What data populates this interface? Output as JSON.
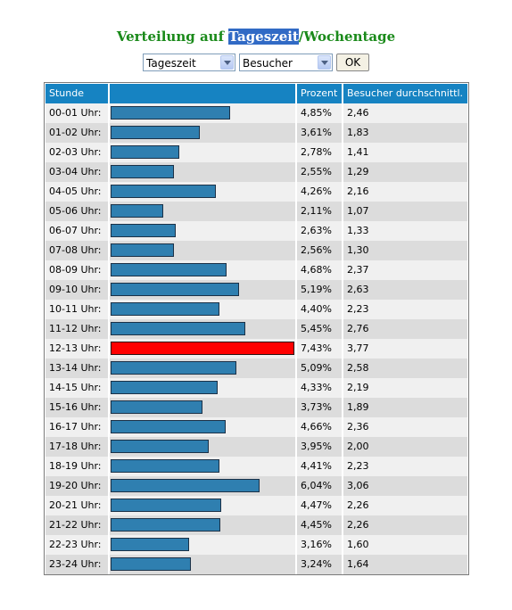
{
  "title": {
    "prefix": "Verteilung auf ",
    "highlight": "Tageszeit",
    "suffix": "/Wochentage"
  },
  "controls": {
    "period_select": "Tageszeit",
    "metric_select": "Besucher",
    "ok_label": "OK"
  },
  "table": {
    "headers": [
      "Stunde",
      "",
      "Prozent",
      "Besucher durchschnittl."
    ],
    "rows": [
      {
        "hour": "00-01 Uhr:",
        "percent": "4,85%",
        "avg": "2,46",
        "pct": 4.85
      },
      {
        "hour": "01-02 Uhr:",
        "percent": "3,61%",
        "avg": "1,83",
        "pct": 3.61
      },
      {
        "hour": "02-03 Uhr:",
        "percent": "2,78%",
        "avg": "1,41",
        "pct": 2.78
      },
      {
        "hour": "03-04 Uhr:",
        "percent": "2,55%",
        "avg": "1,29",
        "pct": 2.55
      },
      {
        "hour": "04-05 Uhr:",
        "percent": "4,26%",
        "avg": "2,16",
        "pct": 4.26
      },
      {
        "hour": "05-06 Uhr:",
        "percent": "2,11%",
        "avg": "1,07",
        "pct": 2.11
      },
      {
        "hour": "06-07 Uhr:",
        "percent": "2,63%",
        "avg": "1,33",
        "pct": 2.63
      },
      {
        "hour": "07-08 Uhr:",
        "percent": "2,56%",
        "avg": "1,30",
        "pct": 2.56
      },
      {
        "hour": "08-09 Uhr:",
        "percent": "4,68%",
        "avg": "2,37",
        "pct": 4.68
      },
      {
        "hour": "09-10 Uhr:",
        "percent": "5,19%",
        "avg": "2,63",
        "pct": 5.19
      },
      {
        "hour": "10-11 Uhr:",
        "percent": "4,40%",
        "avg": "2,23",
        "pct": 4.4
      },
      {
        "hour": "11-12 Uhr:",
        "percent": "5,45%",
        "avg": "2,76",
        "pct": 5.45
      },
      {
        "hour": "12-13 Uhr:",
        "percent": "7,43%",
        "avg": "3,77",
        "pct": 7.43
      },
      {
        "hour": "13-14 Uhr:",
        "percent": "5,09%",
        "avg": "2,58",
        "pct": 5.09
      },
      {
        "hour": "14-15 Uhr:",
        "percent": "4,33%",
        "avg": "2,19",
        "pct": 4.33
      },
      {
        "hour": "15-16 Uhr:",
        "percent": "3,73%",
        "avg": "1,89",
        "pct": 3.73
      },
      {
        "hour": "16-17 Uhr:",
        "percent": "4,66%",
        "avg": "2,36",
        "pct": 4.66
      },
      {
        "hour": "17-18 Uhr:",
        "percent": "3,95%",
        "avg": "2,00",
        "pct": 3.95
      },
      {
        "hour": "18-19 Uhr:",
        "percent": "4,41%",
        "avg": "2,23",
        "pct": 4.41
      },
      {
        "hour": "19-20 Uhr:",
        "percent": "6,04%",
        "avg": "3,06",
        "pct": 6.04
      },
      {
        "hour": "20-21 Uhr:",
        "percent": "4,47%",
        "avg": "2,26",
        "pct": 4.47
      },
      {
        "hour": "21-22 Uhr:",
        "percent": "4,45%",
        "avg": "2,26",
        "pct": 4.45
      },
      {
        "hour": "22-23 Uhr:",
        "percent": "3,16%",
        "avg": "1,60",
        "pct": 3.16
      },
      {
        "hour": "23-24 Uhr:",
        "percent": "3,24%",
        "avg": "1,64",
        "pct": 3.24
      }
    ]
  },
  "colors": {
    "bar": "#2f7fb0",
    "peak": "#ff0000",
    "header": "#1683c2",
    "title": "#1a8a1a"
  }
}
